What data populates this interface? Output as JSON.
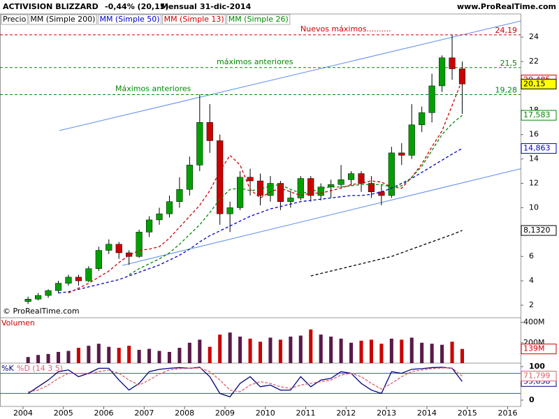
{
  "header": {
    "title": "ACTIVISION BLIZZARD",
    "change": "-0,44% (20,15)",
    "period": "Mensual",
    "date": "31-dic-2014",
    "site": "www.ProRealTime.com",
    "copyright": "© ProRealTime.com",
    "legend_price": "Precio"
  },
  "chart_data": [
    {
      "type": "candlestick",
      "x": [
        2004.125,
        2004.375,
        2004.625,
        2004.875,
        2005.125,
        2005.375,
        2005.625,
        2005.875,
        2006.125,
        2006.375,
        2006.625,
        2006.875,
        2007.125,
        2007.375,
        2007.625,
        2007.875,
        2008.125,
        2008.375,
        2008.625,
        2008.875,
        2009.125,
        2009.375,
        2009.625,
        2009.875,
        2010.125,
        2010.375,
        2010.625,
        2010.875,
        2011.125,
        2011.375,
        2011.625,
        2011.875,
        2012.125,
        2012.375,
        2012.625,
        2012.875,
        2013.125,
        2013.375,
        2013.625,
        2013.875,
        2014.125,
        2014.375,
        2014.625,
        2014.875
      ],
      "open": [
        2.3,
        2.5,
        2.8,
        3.2,
        3.8,
        4.3,
        4.0,
        5.0,
        6.5,
        7.0,
        6.3,
        6.0,
        8.0,
        9.0,
        9.5,
        10.5,
        11.5,
        13.5,
        17.0,
        15.5,
        9.5,
        10.0,
        12.5,
        12.2,
        11.0,
        12.0,
        10.5,
        10.8,
        12.4,
        11.0,
        11.7,
        11.9,
        12.3,
        12.8,
        12.0,
        11.3,
        11.0,
        14.5,
        14.3,
        16.8,
        17.8,
        20.0,
        22.3,
        21.4
      ],
      "high": [
        2.7,
        3.0,
        3.3,
        4.0,
        4.5,
        4.5,
        5.2,
        6.8,
        7.4,
        7.2,
        6.5,
        8.2,
        9.3,
        10.0,
        11.0,
        12.5,
        14.2,
        19.3,
        18.5,
        16.0,
        10.5,
        13.0,
        13.2,
        12.8,
        12.6,
        12.2,
        11.4,
        12.6,
        12.6,
        12.0,
        12.3,
        13.5,
        13.0,
        13.0,
        12.6,
        11.9,
        15.0,
        15.3,
        18.5,
        18.3,
        21.0,
        22.5,
        24.19,
        22.0
      ],
      "low": [
        2.1,
        2.4,
        2.6,
        3.0,
        3.6,
        3.6,
        3.9,
        4.8,
        6.2,
        5.8,
        5.3,
        5.9,
        7.6,
        8.6,
        9.2,
        10.0,
        11.0,
        13.0,
        14.5,
        8.6,
        8.0,
        9.8,
        11.0,
        10.2,
        10.5,
        9.8,
        10.0,
        10.6,
        10.5,
        10.6,
        10.8,
        11.6,
        11.8,
        11.3,
        10.8,
        10.2,
        10.8,
        13.5,
        14.0,
        16.2,
        17.0,
        19.5,
        20.5,
        17.7
      ],
      "close": [
        2.5,
        2.8,
        3.2,
        3.8,
        4.3,
        4.0,
        5.0,
        6.5,
        7.0,
        6.3,
        6.0,
        8.0,
        9.0,
        9.5,
        10.5,
        11.5,
        13.5,
        17.0,
        15.5,
        9.5,
        10.0,
        12.5,
        12.2,
        11.0,
        12.0,
        10.5,
        10.8,
        12.4,
        11.0,
        11.7,
        11.9,
        12.3,
        12.8,
        12.0,
        11.3,
        11.0,
        14.5,
        14.3,
        16.8,
        17.8,
        20.0,
        22.3,
        21.4,
        20.15
      ],
      "last": {
        "value": 20.15,
        "label": "20,15"
      },
      "up_color": "#00a000",
      "down_color": "#cc0000",
      "xlim": [
        2003.43,
        2016.32
      ],
      "xticks": [
        2004,
        2005,
        2006,
        2007,
        2008,
        2009,
        2010,
        2011,
        2012,
        2013,
        2014,
        2015,
        2016
      ],
      "ylim": [
        0.97,
        25.9
      ],
      "yticks": [
        2,
        4,
        6,
        8,
        10,
        12,
        14,
        16,
        18,
        20,
        22,
        24
      ],
      "series": [
        {
          "name": "MM (Simple 200)",
          "color": "#000000",
          "values": [
            null,
            null,
            null,
            null,
            null,
            null,
            null,
            null,
            null,
            null,
            null,
            null,
            null,
            null,
            null,
            null,
            null,
            null,
            null,
            null,
            null,
            null,
            null,
            null,
            null,
            null,
            null,
            null,
            4.4,
            4.6,
            4.8,
            5.0,
            5.2,
            5.4,
            5.6,
            5.8,
            6.0,
            6.3,
            6.6,
            6.9,
            7.2,
            7.5,
            7.8,
            8.132
          ],
          "last": {
            "value": 8.132,
            "label": "8,1320"
          }
        },
        {
          "name": "MM (Simple 50)",
          "color": "#0000cc",
          "values": [
            null,
            null,
            null,
            3.0,
            3.1,
            3.3,
            3.5,
            3.7,
            3.9,
            4.1,
            4.4,
            4.7,
            5.0,
            5.3,
            5.7,
            6.1,
            6.6,
            7.2,
            7.7,
            8.1,
            8.5,
            8.9,
            9.3,
            9.6,
            9.9,
            10.1,
            10.3,
            10.5,
            10.6,
            10.7,
            10.8,
            10.9,
            11.0,
            11.0,
            11.1,
            11.3,
            11.6,
            12.0,
            12.4,
            12.9,
            13.4,
            13.9,
            14.4,
            14.863
          ],
          "last": {
            "value": 14.863,
            "label": "14,863"
          }
        },
        {
          "name": "MM (Simple 13)",
          "color": "#cc0000",
          "values": [
            null,
            null,
            null,
            null,
            3.0,
            3.4,
            3.8,
            4.3,
            4.8,
            5.5,
            6.1,
            6.5,
            6.6,
            6.8,
            7.5,
            8.4,
            9.3,
            10.2,
            11.4,
            13.0,
            14.3,
            13.5,
            11.5,
            10.8,
            11.3,
            11.6,
            11.3,
            11.0,
            11.2,
            11.2,
            11.4,
            11.6,
            11.9,
            12.0,
            12.2,
            12.1,
            11.7,
            11.6,
            12.5,
            13.6,
            15.0,
            16.3,
            18.4,
            20.485
          ],
          "last": {
            "value": 20.485,
            "label": "20,485"
          }
        },
        {
          "name": "MM (Simple 26)",
          "color": "#008800",
          "values": [
            null,
            null,
            null,
            null,
            null,
            null,
            null,
            null,
            null,
            null,
            4.5,
            5.0,
            5.4,
            5.8,
            6.3,
            7.0,
            7.8,
            8.6,
            9.6,
            10.7,
            11.5,
            11.6,
            11.4,
            11.5,
            11.8,
            11.9,
            11.5,
            11.2,
            11.3,
            11.6,
            11.7,
            11.7,
            11.8,
            11.9,
            11.9,
            11.9,
            11.7,
            11.8,
            12.5,
            13.4,
            14.7,
            16.0,
            16.9,
            17.583
          ],
          "last": {
            "value": 17.583,
            "label": "17,583"
          }
        }
      ],
      "hlines": [
        {
          "value": 24.19,
          "label": "24,19",
          "text": "Nuevos máximos..........",
          "color": "#cc0000"
        },
        {
          "value": 21.5,
          "label": "21,5",
          "text": "máximos anteriores",
          "color": "#008800"
        },
        {
          "value": 19.28,
          "label": "19,28",
          "text": "Máximos anteriores",
          "color": "#008800"
        }
      ],
      "trendlines": [
        {
          "x": [
            2004.9,
            2016.32
          ],
          "y": [
            16.33,
            25.32
          ],
          "color": "#5b8def"
        },
        {
          "x": [
            2006.46,
            2016.32
          ],
          "y": [
            5.27,
            13.2
          ],
          "color": "#5b8def"
        }
      ]
    },
    {
      "type": "bar",
      "title": "Volumen",
      "values": [
        60,
        80,
        90,
        110,
        120,
        150,
        170,
        190,
        160,
        150,
        170,
        130,
        140,
        120,
        110,
        150,
        200,
        230,
        160,
        280,
        300,
        260,
        240,
        210,
        250,
        230,
        260,
        270,
        330,
        280,
        260,
        240,
        200,
        220,
        230,
        190,
        240,
        230,
        250,
        200,
        190,
        180,
        210,
        139
      ],
      "last": {
        "value": 139,
        "label": "139M"
      },
      "ylim": [
        0,
        445
      ],
      "yticks": [
        {
          "value": 200,
          "label": "200M"
        },
        {
          "value": 400,
          "label": "400M"
        }
      ]
    },
    {
      "type": "line",
      "title": "%K",
      "ylim": [
        -18.75,
        110.4
      ],
      "yticks": [
        0,
        50,
        100
      ],
      "levels": [
        20,
        80
      ],
      "series": [
        {
          "name": "%K",
          "color": "#000080",
          "values": [
            20,
            40,
            60,
            85,
            90,
            70,
            80,
            95,
            95,
            60,
            30,
            50,
            85,
            92,
            95,
            97,
            95,
            98,
            70,
            20,
            10,
            50,
            70,
            40,
            45,
            30,
            30,
            70,
            40,
            60,
            65,
            85,
            80,
            50,
            30,
            20,
            85,
            80,
            92,
            94,
            97,
            98,
            95,
            55.638
          ],
          "last": {
            "value": 55.638,
            "label": "55,638"
          }
        },
        {
          "name": "%D (14 3 5)",
          "color": "#e06070",
          "values": [
            25,
            30,
            45,
            65,
            80,
            80,
            78,
            85,
            90,
            80,
            60,
            45,
            60,
            78,
            90,
            94,
            95,
            96,
            85,
            60,
            30,
            25,
            45,
            55,
            50,
            40,
            35,
            45,
            50,
            55,
            60,
            75,
            80,
            70,
            50,
            33,
            50,
            70,
            85,
            90,
            94,
            96,
            96,
            71.799
          ],
          "last": {
            "value": 71.799,
            "label": "71,799"
          }
        }
      ]
    }
  ]
}
